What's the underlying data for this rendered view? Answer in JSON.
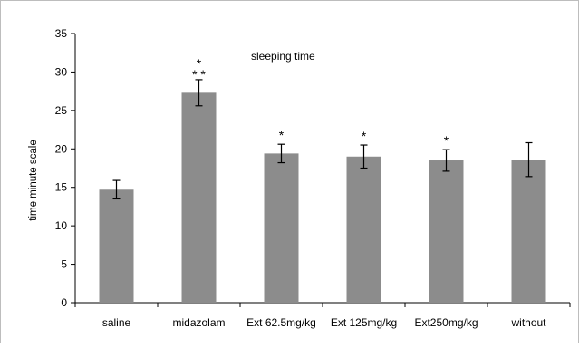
{
  "chart_data": {
    "type": "bar",
    "title": "sleeping time",
    "xlabel": "",
    "ylabel": "time minute scale",
    "ylim": [
      0,
      35
    ],
    "yticks": [
      0,
      5,
      10,
      15,
      20,
      25,
      30,
      35
    ],
    "grid": false,
    "legend": "none",
    "categories": [
      "saline",
      "midazolam",
      "Ext 62.5mg/kg",
      "Ext 125mg/kg",
      "Ext250mg/kg",
      "without"
    ],
    "values": [
      14.7,
      27.3,
      19.4,
      19.0,
      18.5,
      18.6
    ],
    "error": [
      1.2,
      1.7,
      1.2,
      1.5,
      1.4,
      2.2
    ],
    "significance": [
      "",
      "* * *",
      "*",
      "*",
      "*",
      ""
    ],
    "colors": {
      "bar": "#8c8c8c",
      "axis": "#000000",
      "frame": "#bdbdbd"
    }
  }
}
